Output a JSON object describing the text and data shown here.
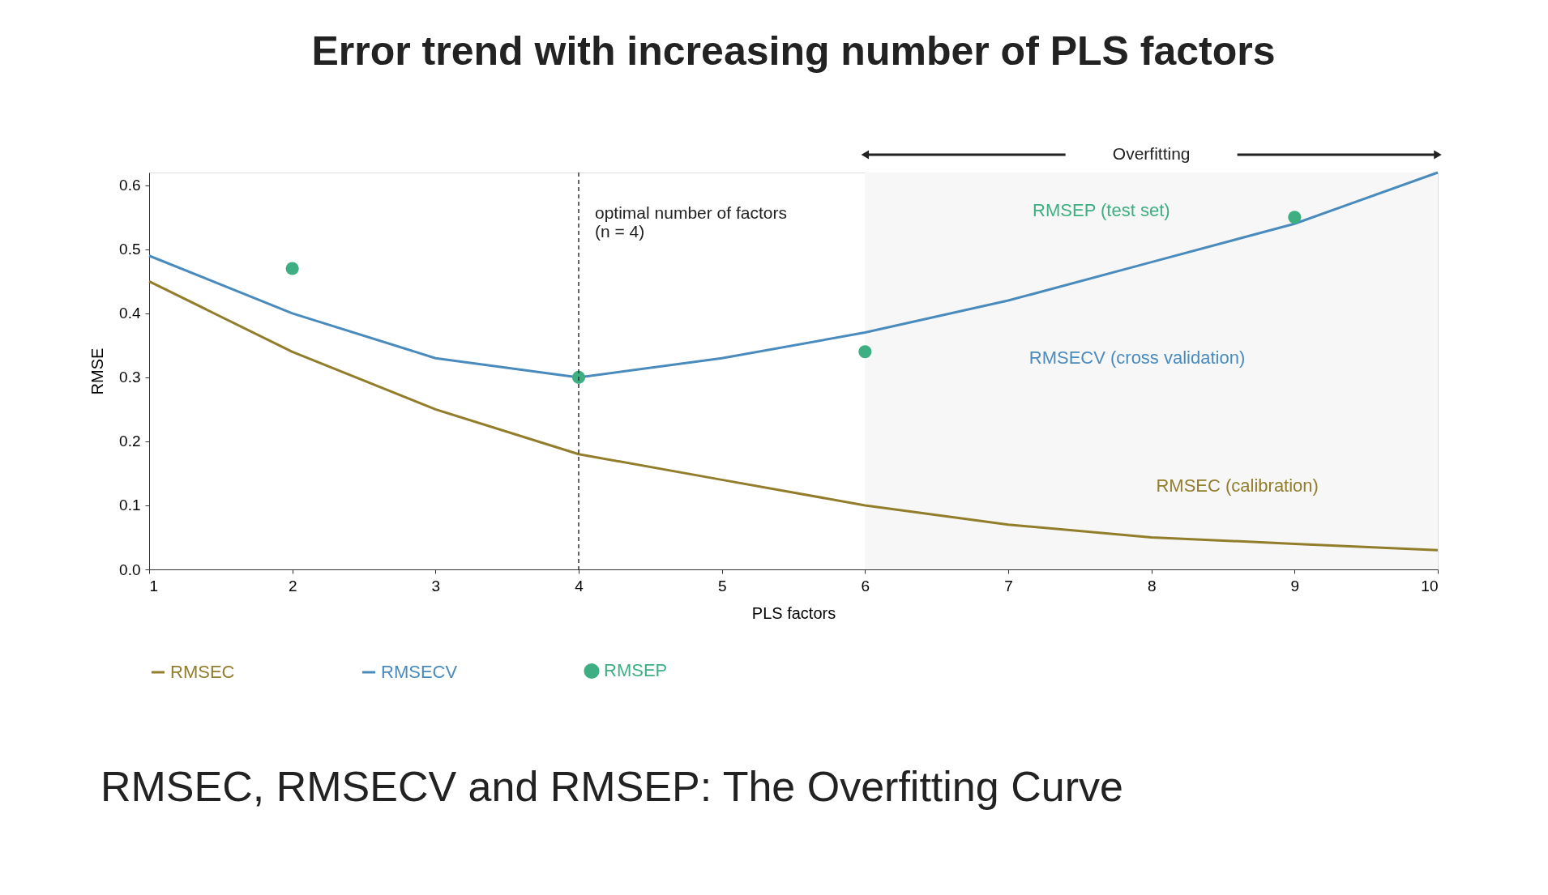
{
  "chart_data": {
    "type": "line",
    "title": "Error trend with increasing number of PLS factors",
    "xlabel": "PLS factors",
    "ylabel": "RMSE",
    "x": [
      1,
      2,
      3,
      4,
      5,
      6,
      7,
      8,
      9,
      10
    ],
    "series": [
      {
        "name": "RMSEC",
        "color": "#927d2b",
        "values": [
          0.45,
          0.34,
          0.25,
          0.18,
          0.14,
          0.1,
          0.07,
          0.05,
          0.04,
          0.03
        ]
      },
      {
        "name": "RMSECV",
        "color": "#4a8bbd",
        "values": [
          0.49,
          0.4,
          0.33,
          0.3,
          0.33,
          0.37,
          0.42,
          0.48,
          0.54,
          0.62
        ]
      },
      {
        "name": "RMSEP",
        "color": "#3daf82",
        "type": "scatter",
        "marker": "circle",
        "x": [
          2,
          4,
          6,
          9
        ],
        "values": [
          0.47,
          0.3,
          0.34,
          0.55
        ]
      }
    ],
    "xlim": [
      1,
      10
    ],
    "ylim": [
      0,
      0.62
    ],
    "xticks": [
      1,
      2,
      3,
      4,
      5,
      6,
      7,
      8,
      9,
      10
    ],
    "yticks": [
      {
        "value": 0,
        "label": "0.0"
      },
      0.1,
      0.2,
      0.3,
      0.4,
      0.5,
      0.6
    ],
    "grid": false,
    "legend": "bottom",
    "line_style": "solid",
    "ref_lines": [
      {
        "axis": "x",
        "value": 4,
        "label": "optimal number of factors\n(n = 4)",
        "line_style": "dashed",
        "color": "#333333"
      }
    ],
    "bands": [
      {
        "axis": "x",
        "from": 6,
        "to": 10,
        "label": "Overfitting",
        "color": "#f7f7f7"
      }
    ],
    "annotations": [
      "RMSEP (test set)",
      "RMSECV (cross validation)",
      "RMSEC (calibration)",
      "RMSEC, RMSECV and RMSEP: The Overfitting Curve"
    ]
  }
}
